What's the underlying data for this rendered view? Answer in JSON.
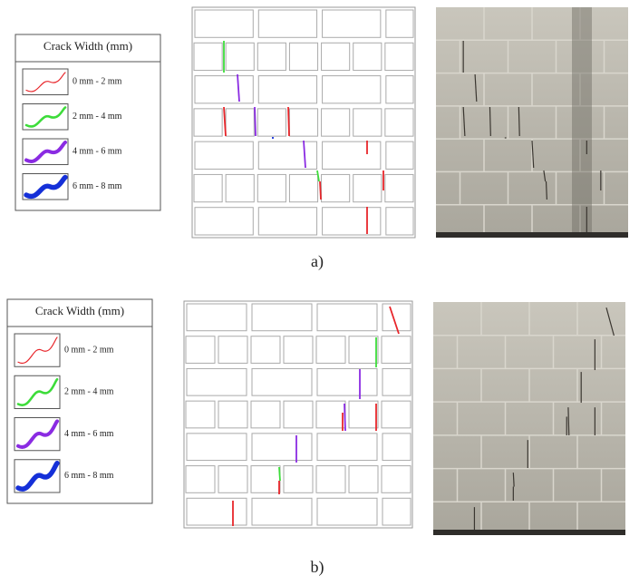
{
  "panels": [
    {
      "legend": {
        "title": "Crack Width (mm)",
        "items": [
          {
            "label": "0 mm - 2 mm",
            "color": "#e8262b"
          },
          {
            "label": "2 mm - 4 mm",
            "color": "#3ddc3a"
          },
          {
            "label": "4 mm - 6 mm",
            "color": "#8a2be2"
          },
          {
            "label": "6 mm - 8 mm",
            "color": "#1530d8"
          }
        ]
      },
      "caption": "a)"
    },
    {
      "legend": {
        "title": "Crack Width (mm)",
        "items": [
          {
            "label": "0 mm - 2 mm",
            "color": "#e8262b"
          },
          {
            "label": "2 mm - 4 mm",
            "color": "#3ddc3a"
          },
          {
            "label": "4 mm - 6 mm",
            "color": "#8a2be2"
          },
          {
            "label": "6 mm - 8 mm",
            "color": "#1530d8"
          }
        ]
      },
      "caption": "b)"
    }
  ]
}
